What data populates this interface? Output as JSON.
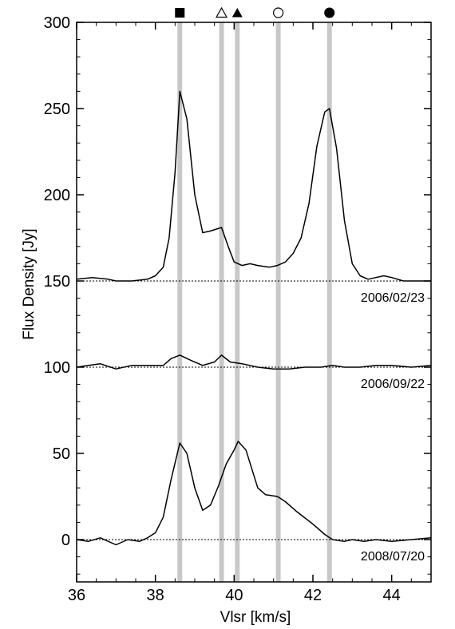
{
  "chart_data": {
    "type": "line",
    "xlabel": "Vlsr [km/s]",
    "ylabel": "Flux Density [Jy]",
    "xlim": [
      36,
      45
    ],
    "ylim": [
      -25,
      300
    ],
    "x_ticks": [
      36,
      38,
      40,
      42,
      44
    ],
    "y_ticks": [
      0,
      50,
      100,
      150,
      200,
      250,
      300
    ],
    "x_tick_labels": [
      "36",
      "38",
      "40",
      "42",
      "44"
    ],
    "y_tick_labels": [
      "0",
      "50",
      "100",
      "150",
      "200",
      "250",
      "300"
    ],
    "grid": false,
    "reference_velocities": [
      {
        "x": 38.62,
        "marker": "filled-square",
        "marker_symbol": "■"
      },
      {
        "x": 39.68,
        "marker": "open-triangle",
        "marker_symbol": "△"
      },
      {
        "x": 40.08,
        "marker": "filled-triangle",
        "marker_symbol": "▲"
      },
      {
        "x": 41.12,
        "marker": "open-circle",
        "marker_symbol": "○"
      },
      {
        "x": 42.42,
        "marker": "filled-circle",
        "marker_symbol": "●"
      }
    ],
    "series": [
      {
        "name": "2006/02/23",
        "baseline": 150,
        "points": [
          [
            36.0,
            151
          ],
          [
            36.4,
            152
          ],
          [
            36.8,
            151
          ],
          [
            37.0,
            150
          ],
          [
            37.4,
            150
          ],
          [
            37.8,
            151
          ],
          [
            38.0,
            153
          ],
          [
            38.2,
            158
          ],
          [
            38.35,
            175
          ],
          [
            38.5,
            213
          ],
          [
            38.62,
            260
          ],
          [
            38.8,
            244
          ],
          [
            39.0,
            200
          ],
          [
            39.2,
            178
          ],
          [
            39.4,
            179
          ],
          [
            39.68,
            181
          ],
          [
            39.85,
            170
          ],
          [
            40.0,
            161
          ],
          [
            40.2,
            159
          ],
          [
            40.4,
            160
          ],
          [
            40.6,
            159
          ],
          [
            40.9,
            158
          ],
          [
            41.1,
            159
          ],
          [
            41.3,
            161
          ],
          [
            41.5,
            166
          ],
          [
            41.7,
            175
          ],
          [
            41.9,
            195
          ],
          [
            42.1,
            228
          ],
          [
            42.3,
            248
          ],
          [
            42.42,
            250
          ],
          [
            42.6,
            227
          ],
          [
            42.8,
            185
          ],
          [
            43.0,
            160
          ],
          [
            43.2,
            153
          ],
          [
            43.4,
            151
          ],
          [
            43.6,
            152
          ],
          [
            43.8,
            153
          ],
          [
            44.0,
            152
          ],
          [
            44.3,
            150
          ],
          [
            44.7,
            150
          ],
          [
            45.0,
            150
          ]
        ]
      },
      {
        "name": "2006/09/22",
        "baseline": 100,
        "points": [
          [
            36.0,
            100
          ],
          [
            36.3,
            101
          ],
          [
            36.6,
            102
          ],
          [
            37.0,
            99
          ],
          [
            37.4,
            101
          ],
          [
            37.8,
            101
          ],
          [
            38.2,
            101
          ],
          [
            38.4,
            105
          ],
          [
            38.62,
            107
          ],
          [
            38.9,
            104
          ],
          [
            39.2,
            101
          ],
          [
            39.5,
            103
          ],
          [
            39.68,
            107
          ],
          [
            39.9,
            103
          ],
          [
            40.2,
            102
          ],
          [
            40.6,
            100
          ],
          [
            41.0,
            99
          ],
          [
            41.4,
            99
          ],
          [
            41.8,
            100
          ],
          [
            42.2,
            100
          ],
          [
            42.5,
            101
          ],
          [
            42.8,
            100
          ],
          [
            43.2,
            100
          ],
          [
            43.6,
            101
          ],
          [
            44.0,
            101
          ],
          [
            44.5,
            100
          ],
          [
            45.0,
            101
          ]
        ]
      },
      {
        "name": "2008/07/20",
        "baseline": 0,
        "points": [
          [
            36.0,
            0
          ],
          [
            36.3,
            -1
          ],
          [
            36.6,
            1
          ],
          [
            37.0,
            -3
          ],
          [
            37.3,
            0
          ],
          [
            37.6,
            -1
          ],
          [
            37.8,
            1
          ],
          [
            38.0,
            4
          ],
          [
            38.2,
            13
          ],
          [
            38.4,
            35
          ],
          [
            38.62,
            56
          ],
          [
            38.8,
            50
          ],
          [
            39.0,
            30
          ],
          [
            39.2,
            17
          ],
          [
            39.4,
            20
          ],
          [
            39.6,
            31
          ],
          [
            39.8,
            44
          ],
          [
            40.0,
            52
          ],
          [
            40.1,
            57
          ],
          [
            40.3,
            52
          ],
          [
            40.6,
            30
          ],
          [
            40.8,
            26
          ],
          [
            41.1,
            25
          ],
          [
            41.3,
            22
          ],
          [
            41.6,
            16
          ],
          [
            42.0,
            9
          ],
          [
            42.3,
            3
          ],
          [
            42.5,
            0
          ],
          [
            42.8,
            -1
          ],
          [
            43.0,
            0
          ],
          [
            43.3,
            -1
          ],
          [
            43.6,
            0
          ],
          [
            44.0,
            -1
          ],
          [
            44.5,
            0
          ],
          [
            45.0,
            1
          ]
        ]
      }
    ]
  }
}
